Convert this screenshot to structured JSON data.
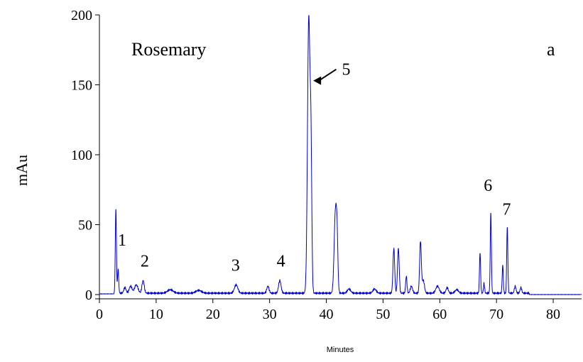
{
  "chart_data": {
    "type": "line",
    "title": "",
    "panel_label": "Rosemary",
    "corner_label": "a",
    "xlabel": "Minutes",
    "ylabel": "mAu",
    "xlim": [
      0,
      85
    ],
    "ylim": [
      0,
      200
    ],
    "x_ticks": [
      "0",
      "10",
      "20",
      "30",
      "40",
      "50",
      "60",
      "70",
      "80"
    ],
    "y_ticks": [
      "0",
      "50",
      "100",
      "150",
      "200"
    ],
    "grid": false,
    "line_color": "#0000cc",
    "baseline": 1,
    "series": [
      {
        "peaks": [
          {
            "t": 2.9,
            "h": 60,
            "w": 0.1
          },
          {
            "t": 3.3,
            "h": 17,
            "w": 0.1
          },
          {
            "t": 4.5,
            "h": 4,
            "w": 0.2
          },
          {
            "t": 5.5,
            "h": 5,
            "w": 0.25
          },
          {
            "t": 6.5,
            "h": 6,
            "w": 0.3
          },
          {
            "t": 7.7,
            "h": 9,
            "w": 0.2
          },
          {
            "t": 12.5,
            "h": 2.5,
            "w": 0.5
          },
          {
            "t": 17.5,
            "h": 2,
            "w": 0.5
          },
          {
            "t": 24.1,
            "h": 6,
            "w": 0.3
          },
          {
            "t": 29.7,
            "h": 5,
            "w": 0.2
          },
          {
            "t": 31.8,
            "h": 9,
            "w": 0.22
          },
          {
            "t": 36.9,
            "h": 196,
            "w": 0.22
          },
          {
            "t": 37.3,
            "h": 90,
            "w": 0.15
          },
          {
            "t": 41.6,
            "h": 57,
            "w": 0.22
          },
          {
            "t": 41.9,
            "h": 30,
            "w": 0.15
          },
          {
            "t": 44.0,
            "h": 3,
            "w": 0.3
          },
          {
            "t": 48.5,
            "h": 3,
            "w": 0.3
          },
          {
            "t": 51.9,
            "h": 32,
            "w": 0.15
          },
          {
            "t": 52.7,
            "h": 32,
            "w": 0.15
          },
          {
            "t": 54.1,
            "h": 12,
            "w": 0.12
          },
          {
            "t": 55.0,
            "h": 5,
            "w": 0.2
          },
          {
            "t": 56.6,
            "h": 37,
            "w": 0.15
          },
          {
            "t": 57.1,
            "h": 9,
            "w": 0.2
          },
          {
            "t": 59.6,
            "h": 5,
            "w": 0.3
          },
          {
            "t": 61.3,
            "h": 4,
            "w": 0.2
          },
          {
            "t": 63.0,
            "h": 2.5,
            "w": 0.3
          },
          {
            "t": 67.1,
            "h": 29,
            "w": 0.1
          },
          {
            "t": 67.8,
            "h": 7,
            "w": 0.1
          },
          {
            "t": 69.0,
            "h": 57,
            "w": 0.1
          },
          {
            "t": 71.1,
            "h": 20,
            "w": 0.1
          },
          {
            "t": 71.9,
            "h": 47,
            "w": 0.1
          },
          {
            "t": 73.3,
            "h": 5,
            "w": 0.15
          },
          {
            "t": 74.3,
            "h": 4,
            "w": 0.15
          }
        ]
      }
    ],
    "annotations": [
      {
        "label": "1",
        "x": 4.0,
        "y": 35
      },
      {
        "label": "2",
        "x": 8.0,
        "y": 20
      },
      {
        "label": "3",
        "x": 24.0,
        "y": 17
      },
      {
        "label": "4",
        "x": 32.0,
        "y": 20
      },
      {
        "label": "5",
        "x": 43.5,
        "y": 157,
        "arrow_to": {
          "x": 37.2,
          "y": 153
        }
      },
      {
        "label": "6",
        "x": 68.5,
        "y": 74
      },
      {
        "label": "7",
        "x": 71.8,
        "y": 57
      }
    ]
  }
}
